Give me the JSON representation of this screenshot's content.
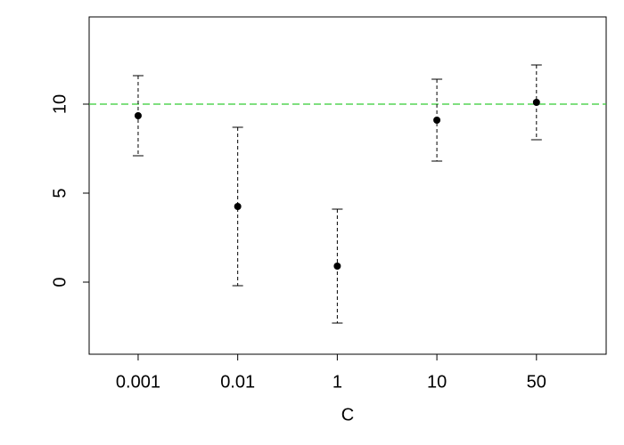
{
  "chart_data": {
    "type": "errorbar",
    "x_label": "C",
    "categories": [
      "0.001",
      "0.01",
      "1",
      "10",
      "50"
    ],
    "values": [
      9.35,
      4.25,
      0.9,
      9.1,
      10.1
    ],
    "errors": [
      2.25,
      4.45,
      3.2,
      2.3,
      2.1
    ],
    "color": "#000000",
    "ylim": [
      -4.05,
      14.9
    ],
    "yticks": [
      0,
      5,
      10
    ],
    "reference_line": {
      "value": 10,
      "color": "#33cc33"
    }
  }
}
